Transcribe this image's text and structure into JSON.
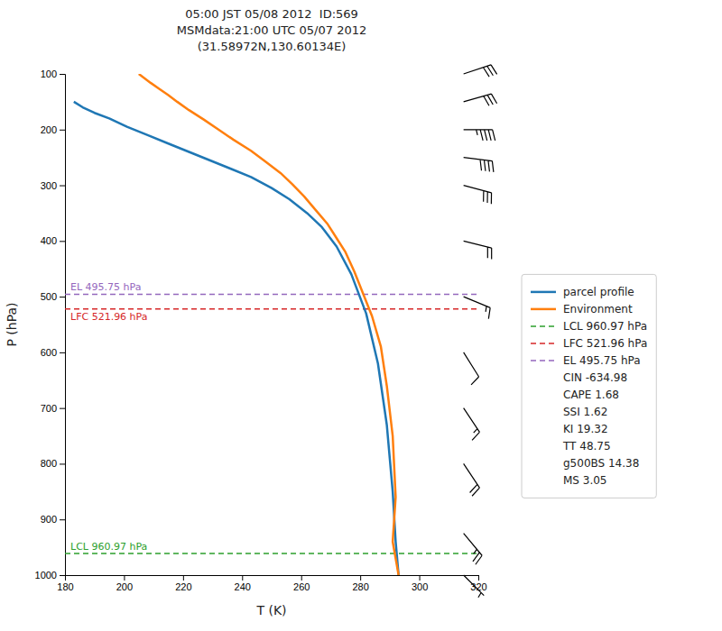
{
  "chart_data": {
    "type": "line",
    "title": "05:00 JST 05/08 2012  ID:569\nMSMdata:21:00 UTC 05/07 2012\n(31.58972N,130.60134E)",
    "x_label": "T (K)",
    "y_label": "P (hPa)",
    "xlim": [
      180,
      320
    ],
    "ylim": [
      1000,
      100
    ],
    "xticks": [
      180,
      200,
      220,
      240,
      260,
      280,
      300,
      320
    ],
    "yticks": [
      100,
      200,
      300,
      400,
      500,
      600,
      700,
      800,
      900,
      1000
    ],
    "grid": false,
    "legend": "right",
    "series": [
      {
        "name": "parcel profile",
        "type": "line",
        "color": "#1f77b4",
        "line_style": "solid",
        "x": [
          183,
          186,
          190,
          195,
          201,
          208,
          215,
          222,
          229,
          236,
          243,
          250,
          256,
          262,
          267,
          272,
          277,
          282,
          286,
          289,
          291,
          292,
          293
        ],
        "values": [
          150,
          160,
          170,
          180,
          195,
          210,
          225,
          240,
          255,
          270,
          285,
          305,
          325,
          350,
          375,
          410,
          460,
          530,
          620,
          730,
          850,
          940,
          1000
        ]
      },
      {
        "name": "Environment",
        "type": "line",
        "color": "#ff7f0e",
        "line_style": "solid",
        "x": [
          205,
          207,
          209,
          212,
          215,
          218,
          222,
          227,
          232,
          237,
          243,
          248,
          253,
          257,
          261,
          265,
          269,
          272,
          275,
          278,
          281,
          284,
          287,
          289,
          291,
          292,
          291,
          293
        ],
        "values": [
          100,
          108,
          116,
          127,
          138,
          150,
          165,
          182,
          200,
          218,
          238,
          258,
          278,
          298,
          320,
          345,
          370,
          395,
          420,
          455,
          495,
          535,
          590,
          660,
          750,
          860,
          940,
          1000
        ]
      },
      {
        "name": "LCL 960.97 hPa",
        "type": "hline",
        "color": "#2ca02c",
        "line_style": "dashed",
        "values": [
          960.97
        ]
      },
      {
        "name": "LFC 521.96 hPa",
        "type": "hline",
        "color": "#d62728",
        "line_style": "dashed",
        "values": [
          521.96
        ]
      },
      {
        "name": "EL 495.75 hPa",
        "type": "hline",
        "color": "#9467bd",
        "line_style": "dashed",
        "values": [
          495.75
        ]
      }
    ],
    "barbs": {
      "x": 315,
      "values": [
        100,
        150,
        200,
        250,
        300,
        400,
        500,
        600,
        700,
        800,
        925,
        1000
      ],
      "u": [
        -30,
        -28,
        -45,
        -40,
        -30,
        -20,
        -12,
        -5,
        -8,
        -10,
        -15,
        -5
      ],
      "v": [
        -10,
        -8,
        0,
        5,
        8,
        5,
        5,
        8,
        12,
        15,
        18,
        5
      ],
      "color": "#000000"
    },
    "annotations": [
      "CIN -634.98",
      "CAPE 1.68",
      "SSI 1.62",
      "KI 19.32",
      "TT 48.75",
      "g500BS 14.38",
      "MS 3.05"
    ]
  }
}
